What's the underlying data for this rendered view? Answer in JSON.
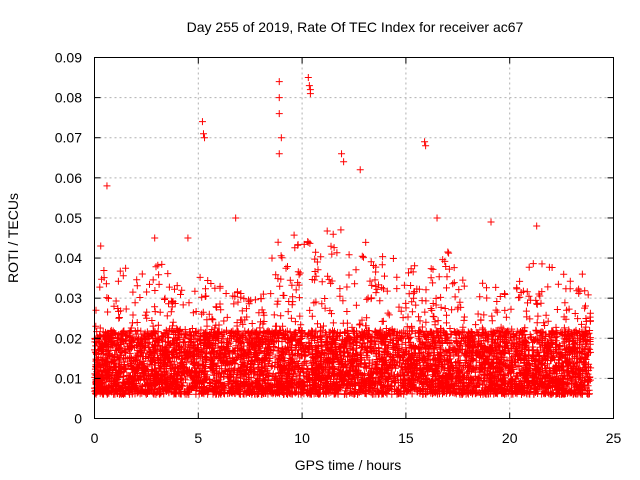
{
  "chart_data": {
    "type": "scatter",
    "title": "Day 255 of 2019, Rate Of TEC Index for receiver ac67",
    "xlabel": "GPS time / hours",
    "ylabel": "ROTI / TECUs",
    "xlim": [
      0,
      25
    ],
    "ylim": [
      0,
      0.09
    ],
    "xticks": [
      0,
      5,
      10,
      15,
      20,
      25
    ],
    "xtick_labels": [
      "0",
      "5",
      "10",
      "15",
      "20",
      "25"
    ],
    "yticks": [
      0,
      0.01,
      0.02,
      0.03,
      0.04,
      0.05,
      0.06,
      0.07,
      0.08,
      0.09
    ],
    "ytick_labels": [
      "0",
      "0.01",
      "0.02",
      "0.03",
      "0.04",
      "0.05",
      "0.06",
      "0.07",
      "0.08",
      "0.09"
    ],
    "grid": true,
    "marker": "plus",
    "marker_color": "#ff0000",
    "x_data_range": [
      0,
      23.9
    ],
    "y_data_range": [
      0.003,
      0.085
    ],
    "baseline_band": [
      0.006,
      0.022
    ],
    "notable_points": [
      {
        "x": 0.6,
        "y": 0.058
      },
      {
        "x": 5.2,
        "y": 0.074
      },
      {
        "x": 5.25,
        "y": 0.071
      },
      {
        "x": 5.3,
        "y": 0.07
      },
      {
        "x": 8.9,
        "y": 0.084
      },
      {
        "x": 8.9,
        "y": 0.08
      },
      {
        "x": 8.9,
        "y": 0.076
      },
      {
        "x": 9.0,
        "y": 0.07
      },
      {
        "x": 8.9,
        "y": 0.066
      },
      {
        "x": 10.3,
        "y": 0.085
      },
      {
        "x": 10.35,
        "y": 0.083
      },
      {
        "x": 10.4,
        "y": 0.082
      },
      {
        "x": 10.4,
        "y": 0.081
      },
      {
        "x": 11.9,
        "y": 0.066
      },
      {
        "x": 12.0,
        "y": 0.064
      },
      {
        "x": 12.8,
        "y": 0.062
      },
      {
        "x": 15.9,
        "y": 0.069
      },
      {
        "x": 15.95,
        "y": 0.068
      },
      {
        "x": 6.8,
        "y": 0.05
      },
      {
        "x": 19.1,
        "y": 0.049
      },
      {
        "x": 16.5,
        "y": 0.05
      },
      {
        "x": 0.3,
        "y": 0.043
      },
      {
        "x": 4.5,
        "y": 0.045
      },
      {
        "x": 2.9,
        "y": 0.045
      },
      {
        "x": 21.3,
        "y": 0.048
      },
      {
        "x": 23.5,
        "y": 0.036
      }
    ],
    "activity_envelope": [
      {
        "x": 0,
        "y": 0.035
      },
      {
        "x": 1,
        "y": 0.04
      },
      {
        "x": 2,
        "y": 0.035
      },
      {
        "x": 3,
        "y": 0.04
      },
      {
        "x": 4,
        "y": 0.036
      },
      {
        "x": 5,
        "y": 0.038
      },
      {
        "x": 6,
        "y": 0.033
      },
      {
        "x": 7,
        "y": 0.032
      },
      {
        "x": 8,
        "y": 0.03
      },
      {
        "x": 9,
        "y": 0.05
      },
      {
        "x": 10,
        "y": 0.048
      },
      {
        "x": 11,
        "y": 0.05
      },
      {
        "x": 12,
        "y": 0.047
      },
      {
        "x": 13,
        "y": 0.045
      },
      {
        "x": 14,
        "y": 0.042
      },
      {
        "x": 15,
        "y": 0.038
      },
      {
        "x": 16,
        "y": 0.04
      },
      {
        "x": 17,
        "y": 0.042
      },
      {
        "x": 18,
        "y": 0.032
      },
      {
        "x": 19,
        "y": 0.035
      },
      {
        "x": 20,
        "y": 0.03
      },
      {
        "x": 21,
        "y": 0.04
      },
      {
        "x": 22,
        "y": 0.04
      },
      {
        "x": 23,
        "y": 0.034
      },
      {
        "x": 23.9,
        "y": 0.033
      }
    ]
  }
}
